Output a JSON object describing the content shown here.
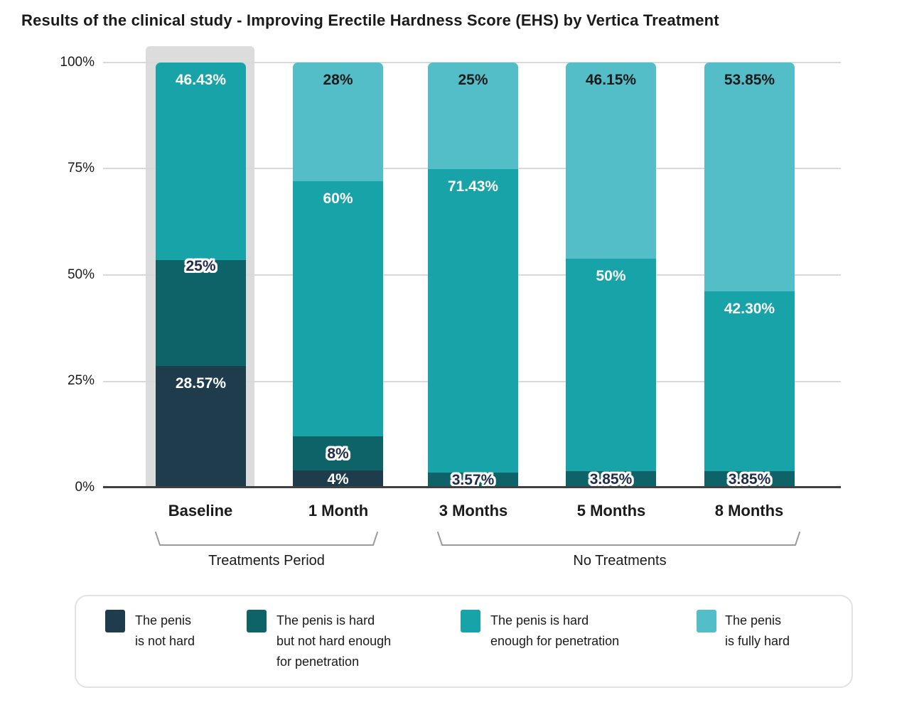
{
  "title": "Results of the clinical study - Improving Erectile Hardness Score (EHS) by Vertica Treatment",
  "y_axis": {
    "ticks": [
      "100%",
      "75%",
      "50%",
      "25%",
      "0%"
    ]
  },
  "x_axis": {
    "categories": [
      "Baseline",
      "1 Month",
      "3 Months",
      "5 Months",
      "8 Months"
    ]
  },
  "group_labels": {
    "treatments": "Treatments Period",
    "no_treatments": "No Treatments"
  },
  "colors": {
    "not_hard": "#1e3c4b",
    "hard_not_enough": "#0e6368",
    "hard_enough": "#17a3a8",
    "fully_hard": "#53bec8",
    "baseline_highlight": "#dcdcdc",
    "gridline": "#d9d9d9",
    "axis": "#404040",
    "outline_label_text": "#1f2c4d"
  },
  "legend": {
    "items": [
      {
        "key": "not_hard",
        "color": "#1e3c4b",
        "label": "The penis\nis not hard"
      },
      {
        "key": "hard_not_enough",
        "color": "#0e6368",
        "label": "The penis is hard\nbut not hard enough\nfor penetration"
      },
      {
        "key": "hard_enough",
        "color": "#17a3a8",
        "label": "The penis is hard\nenough for penetration"
      },
      {
        "key": "fully_hard",
        "color": "#53bec8",
        "label": "The penis\nis fully hard"
      }
    ]
  },
  "bars": [
    {
      "category": "Baseline",
      "segments": [
        {
          "series": "hard_enough",
          "value": 46.43,
          "label": "46.43%",
          "label_style": "white",
          "label_pos": "top"
        },
        {
          "series": "hard_not_enough",
          "value": 25,
          "label": "25%",
          "label_style": "outline",
          "label_pos": "top"
        },
        {
          "series": "not_hard",
          "value": 28.57,
          "label": "28.57%",
          "label_style": "white",
          "label_pos": "top"
        }
      ]
    },
    {
      "category": "1 Month",
      "segments": [
        {
          "series": "fully_hard",
          "value": 28,
          "label": "28%",
          "label_style": "dark",
          "label_pos": "top"
        },
        {
          "series": "hard_enough",
          "value": 60,
          "label": "60%",
          "label_style": "white",
          "label_pos": "top"
        },
        {
          "series": "hard_not_enough",
          "value": 8,
          "label": "8%",
          "label_style": "outline",
          "label_pos": "center"
        },
        {
          "series": "not_hard",
          "value": 4,
          "label": "4%",
          "label_style": "white",
          "label_pos": "center"
        }
      ]
    },
    {
      "category": "3 Months",
      "segments": [
        {
          "series": "fully_hard",
          "value": 25,
          "label": "25%",
          "label_style": "dark",
          "label_pos": "top"
        },
        {
          "series": "hard_enough",
          "value": 71.43,
          "label": "71.43%",
          "label_style": "white",
          "label_pos": "top"
        },
        {
          "series": "hard_not_enough",
          "value": 3.57,
          "label": "3.57%",
          "label_style": "outline",
          "label_pos": "center"
        }
      ]
    },
    {
      "category": "5 Months",
      "segments": [
        {
          "series": "fully_hard",
          "value": 46.15,
          "label": "46.15%",
          "label_style": "dark",
          "label_pos": "top"
        },
        {
          "series": "hard_enough",
          "value": 50,
          "label": "50%",
          "label_style": "white",
          "label_pos": "top"
        },
        {
          "series": "hard_not_enough",
          "value": 3.85,
          "label": "3.85%",
          "label_style": "outline",
          "label_pos": "center"
        }
      ]
    },
    {
      "category": "8 Months",
      "segments": [
        {
          "series": "fully_hard",
          "value": 53.85,
          "label": "53.85%",
          "label_style": "dark",
          "label_pos": "top"
        },
        {
          "series": "hard_enough",
          "value": 42.3,
          "label": "42.30%",
          "label_style": "white",
          "label_pos": "top"
        },
        {
          "series": "hard_not_enough",
          "value": 3.85,
          "label": "3.85%",
          "label_style": "outline",
          "label_pos": "center"
        }
      ]
    }
  ],
  "chart_data": {
    "type": "bar",
    "stacked": true,
    "title": "Results of the clinical study - Improving Erectile Hardness Score (EHS) by Vertica Treatment",
    "categories": [
      "Baseline",
      "1 Month",
      "3 Months",
      "5 Months",
      "8 Months"
    ],
    "series": [
      {
        "name": "The penis is not hard",
        "color": "#1e3c4b",
        "values": [
          28.57,
          4,
          0,
          0,
          0
        ]
      },
      {
        "name": "The penis is hard but not hard enough for penetration",
        "color": "#0e6368",
        "values": [
          25,
          8,
          3.57,
          3.85,
          3.85
        ]
      },
      {
        "name": "The penis is hard enough for penetration",
        "color": "#17a3a8",
        "values": [
          46.43,
          60,
          71.43,
          50,
          42.3
        ]
      },
      {
        "name": "The penis is fully hard",
        "color": "#53bec8",
        "values": [
          0,
          28,
          25,
          46.15,
          53.85
        ]
      }
    ],
    "xlabel": "",
    "ylabel": "",
    "ylim": [
      0,
      100
    ],
    "y_ticks": [
      "0%",
      "25%",
      "50%",
      "75%",
      "100%"
    ],
    "grid": true,
    "legend_position": "bottom",
    "annotations": {
      "highlighted_category": "Baseline",
      "group_brackets": [
        {
          "label": "Treatments Period",
          "categories": [
            "Baseline",
            "1 Month"
          ]
        },
        {
          "label": "No Treatments",
          "categories": [
            "3 Months",
            "5 Months",
            "8 Months"
          ]
        }
      ]
    }
  }
}
